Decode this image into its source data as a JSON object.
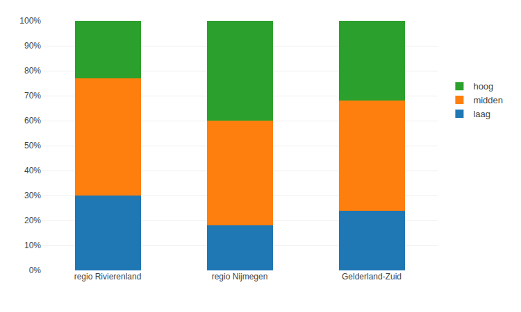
{
  "chart_data": {
    "type": "bar",
    "stacked": true,
    "categories": [
      "regio Rivierenland",
      "regio Nijmegen",
      "Gelderland-Zuid"
    ],
    "series": [
      {
        "name": "laag",
        "values": [
          0.3,
          0.18,
          0.24
        ]
      },
      {
        "name": "midden",
        "values": [
          0.47,
          0.42,
          0.44
        ]
      },
      {
        "name": "hoog",
        "values": [
          0.23,
          0.4,
          0.32
        ]
      }
    ],
    "ylim": [
      0,
      1.0
    ],
    "yticks": [
      {
        "value": 0.0,
        "label": "0%"
      },
      {
        "value": 0.1,
        "label": "10%"
      },
      {
        "value": 0.2,
        "label": "20%"
      },
      {
        "value": 0.3,
        "label": "30%"
      },
      {
        "value": 0.4,
        "label": "40%"
      },
      {
        "value": 0.5,
        "label": "50%"
      },
      {
        "value": 0.6,
        "label": "60%"
      },
      {
        "value": 0.7,
        "label": "70%"
      },
      {
        "value": 0.8,
        "label": "80%"
      },
      {
        "value": 0.9,
        "label": "90%"
      },
      {
        "value": 1.0,
        "label": "100%"
      }
    ],
    "grid": true,
    "legend": "right"
  }
}
